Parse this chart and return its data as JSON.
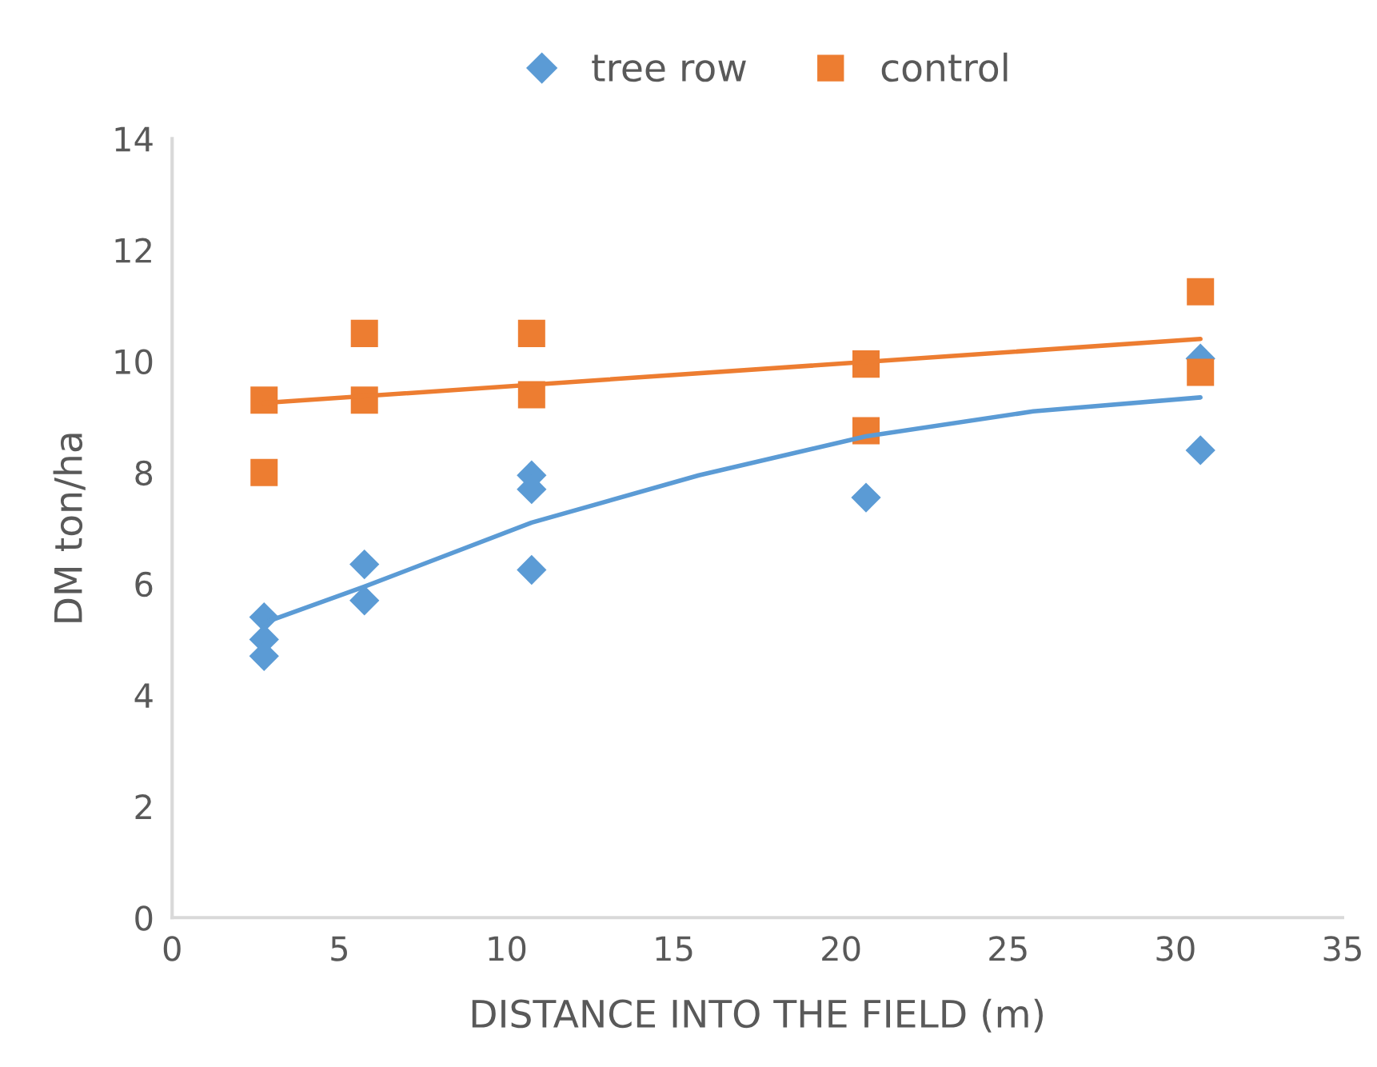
{
  "chart_data": {
    "type": "scatter",
    "xlabel": "DISTANCE INTO THE FIELD (m)",
    "ylabel": "DM ton/ha",
    "xlim": [
      0,
      35
    ],
    "xticks": [
      0,
      5,
      10,
      15,
      20,
      25,
      30,
      35
    ],
    "ylim": [
      0,
      14
    ],
    "yticks": [
      0,
      2,
      4,
      6,
      8,
      10,
      12,
      14
    ],
    "grid": false,
    "legend": "top",
    "series": [
      {
        "name": "tree row",
        "color": "#5b9bd5",
        "marker": "diamond",
        "x": [
          2.75,
          2.75,
          2.75,
          5.75,
          5.75,
          10.75,
          10.75,
          10.75,
          20.75,
          30.75,
          30.75
        ],
        "values": [
          5.4,
          5.0,
          4.7,
          6.35,
          5.7,
          7.95,
          7.7,
          6.25,
          7.55,
          8.4,
          10.05
        ]
      },
      {
        "name": "control",
        "color": "#ed7d31",
        "marker": "square",
        "x": [
          2.75,
          2.75,
          5.75,
          5.75,
          10.75,
          10.75,
          20.75,
          20.75,
          30.75,
          30.75
        ],
        "values": [
          9.3,
          8.0,
          10.5,
          9.3,
          10.5,
          9.4,
          9.95,
          8.75,
          11.25,
          9.8
        ]
      },
      {
        "type": "line",
        "color": "#5b9bd5",
        "marker": "none",
        "x": [
          2.75,
          5.75,
          10.75,
          15.75,
          20.75,
          25.75,
          30.75
        ],
        "values": [
          5.3,
          5.95,
          7.1,
          7.95,
          8.65,
          9.1,
          9.35
        ]
      },
      {
        "type": "line",
        "color": "#ed7d31",
        "marker": "none",
        "x": [
          2.75,
          30.75
        ],
        "values": [
          9.25,
          10.4
        ]
      }
    ]
  }
}
